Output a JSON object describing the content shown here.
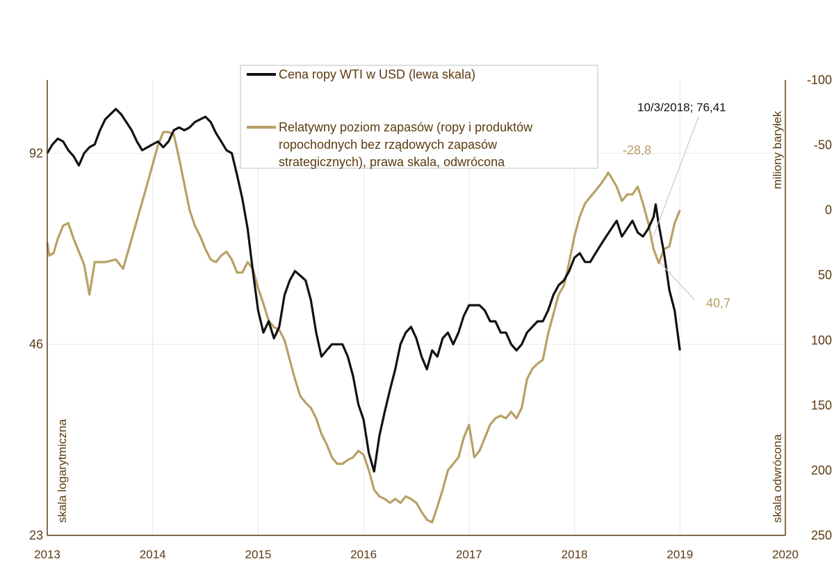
{
  "colors": {
    "axis": "#5c3a10",
    "wti": "#111111",
    "inventory": "#b8a065",
    "grid": "#e6e6e6",
    "callout": "#c8c8c8"
  },
  "chart_data": {
    "type": "line",
    "x_range": [
      2013,
      2020
    ],
    "x_ticks": [
      "2013",
      "2014",
      "2015",
      "2016",
      "2017",
      "2018",
      "2019",
      "2020"
    ],
    "left_axis": {
      "scale": "log",
      "range": [
        23,
        120
      ],
      "ticks": [
        {
          "value": 92,
          "label": "92"
        },
        {
          "value": 46,
          "label": "46"
        },
        {
          "value": 23,
          "label": "23"
        }
      ],
      "title": "skala logarytmiczna"
    },
    "right_axis": {
      "inverted": true,
      "range": [
        -100,
        250
      ],
      "ticks": [
        {
          "value": -100,
          "label": "-100"
        },
        {
          "value": -50,
          "label": "-50"
        },
        {
          "value": 0,
          "label": "0"
        },
        {
          "value": 50,
          "label": "50"
        },
        {
          "value": 100,
          "label": "100"
        },
        {
          "value": 150,
          "label": "150"
        },
        {
          "value": 200,
          "label": "200"
        },
        {
          "value": 250,
          "label": "250"
        }
      ],
      "title_top": "miliony baryłek",
      "title_bottom": "skala odwrócona"
    },
    "legend": {
      "wti": "Cena ropy WTI w USD (lewa skala)",
      "inventory_lines": [
        "Relatywny poziom zapasów (ropy i produktów",
        "ropochodnych bez rządowych zapasów",
        "strategicznych), prawa skala, odwrócona"
      ]
    },
    "annotations": {
      "wti_peak": "10/3/2018; 76,41",
      "inv_min": "-28,8",
      "inv_value": "40,7"
    },
    "series": [
      {
        "name": "Cena ropy WTI w USD (lewa skala)",
        "axis": "left",
        "points": [
          [
            2013.0,
            92
          ],
          [
            2013.05,
            95
          ],
          [
            2013.1,
            97
          ],
          [
            2013.15,
            96
          ],
          [
            2013.2,
            93
          ],
          [
            2013.25,
            91
          ],
          [
            2013.3,
            88
          ],
          [
            2013.35,
            92
          ],
          [
            2013.4,
            94
          ],
          [
            2013.45,
            95
          ],
          [
            2013.5,
            100
          ],
          [
            2013.55,
            104
          ],
          [
            2013.6,
            106
          ],
          [
            2013.65,
            108
          ],
          [
            2013.7,
            106
          ],
          [
            2013.75,
            103
          ],
          [
            2013.8,
            100
          ],
          [
            2013.85,
            96
          ],
          [
            2013.9,
            93
          ],
          [
            2013.95,
            94
          ],
          [
            2014.0,
            95
          ],
          [
            2014.05,
            96
          ],
          [
            2014.1,
            94
          ],
          [
            2014.15,
            96
          ],
          [
            2014.2,
            100
          ],
          [
            2014.25,
            101
          ],
          [
            2014.3,
            100
          ],
          [
            2014.35,
            101
          ],
          [
            2014.4,
            103
          ],
          [
            2014.45,
            104
          ],
          [
            2014.5,
            105
          ],
          [
            2014.55,
            103
          ],
          [
            2014.6,
            99
          ],
          [
            2014.65,
            96
          ],
          [
            2014.7,
            93
          ],
          [
            2014.75,
            92
          ],
          [
            2014.8,
            85
          ],
          [
            2014.85,
            78
          ],
          [
            2014.9,
            70
          ],
          [
            2014.95,
            60
          ],
          [
            2015.0,
            52
          ],
          [
            2015.05,
            48
          ],
          [
            2015.1,
            50
          ],
          [
            2015.15,
            47
          ],
          [
            2015.2,
            49
          ],
          [
            2015.25,
            55
          ],
          [
            2015.3,
            58
          ],
          [
            2015.35,
            60
          ],
          [
            2015.4,
            59
          ],
          [
            2015.45,
            58
          ],
          [
            2015.5,
            54
          ],
          [
            2015.55,
            48
          ],
          [
            2015.6,
            44
          ],
          [
            2015.65,
            45
          ],
          [
            2015.7,
            46
          ],
          [
            2015.75,
            46
          ],
          [
            2015.8,
            46
          ],
          [
            2015.85,
            44
          ],
          [
            2015.9,
            41
          ],
          [
            2015.95,
            37
          ],
          [
            2016.0,
            35
          ],
          [
            2016.05,
            31
          ],
          [
            2016.1,
            29
          ],
          [
            2016.15,
            33
          ],
          [
            2016.2,
            36
          ],
          [
            2016.25,
            39
          ],
          [
            2016.3,
            42
          ],
          [
            2016.35,
            46
          ],
          [
            2016.4,
            48
          ],
          [
            2016.45,
            49
          ],
          [
            2016.5,
            47
          ],
          [
            2016.55,
            44
          ],
          [
            2016.6,
            42
          ],
          [
            2016.65,
            45
          ],
          [
            2016.7,
            44
          ],
          [
            2016.75,
            47
          ],
          [
            2016.8,
            48
          ],
          [
            2016.85,
            46
          ],
          [
            2016.9,
            48
          ],
          [
            2016.95,
            51
          ],
          [
            2017.0,
            53
          ],
          [
            2017.05,
            53
          ],
          [
            2017.1,
            53
          ],
          [
            2017.15,
            52
          ],
          [
            2017.2,
            50
          ],
          [
            2017.25,
            50
          ],
          [
            2017.3,
            48
          ],
          [
            2017.35,
            48
          ],
          [
            2017.4,
            46
          ],
          [
            2017.45,
            45
          ],
          [
            2017.5,
            46
          ],
          [
            2017.55,
            48
          ],
          [
            2017.6,
            49
          ],
          [
            2017.65,
            50
          ],
          [
            2017.7,
            50
          ],
          [
            2017.75,
            52
          ],
          [
            2017.8,
            55
          ],
          [
            2017.85,
            57
          ],
          [
            2017.9,
            58
          ],
          [
            2017.95,
            60
          ],
          [
            2018.0,
            63
          ],
          [
            2018.05,
            64
          ],
          [
            2018.1,
            62
          ],
          [
            2018.15,
            62
          ],
          [
            2018.2,
            64
          ],
          [
            2018.25,
            66
          ],
          [
            2018.3,
            68
          ],
          [
            2018.35,
            70
          ],
          [
            2018.4,
            72
          ],
          [
            2018.45,
            68
          ],
          [
            2018.5,
            70
          ],
          [
            2018.55,
            72
          ],
          [
            2018.6,
            69
          ],
          [
            2018.65,
            68
          ],
          [
            2018.7,
            70
          ],
          [
            2018.75,
            73
          ],
          [
            2018.77,
            76.41
          ],
          [
            2018.8,
            71
          ],
          [
            2018.85,
            64
          ],
          [
            2018.9,
            56
          ],
          [
            2018.95,
            52
          ],
          [
            2019.0,
            45
          ]
        ]
      },
      {
        "name": "Relatywny poziom zapasów (prawa skala, odwrócona)",
        "axis": "right",
        "points": [
          [
            2013.0,
            25
          ],
          [
            2013.02,
            35
          ],
          [
            2013.06,
            33
          ],
          [
            2013.1,
            22
          ],
          [
            2013.15,
            12
          ],
          [
            2013.2,
            10
          ],
          [
            2013.25,
            22
          ],
          [
            2013.3,
            32
          ],
          [
            2013.35,
            42
          ],
          [
            2013.4,
            65
          ],
          [
            2013.45,
            40
          ],
          [
            2013.55,
            40
          ],
          [
            2013.65,
            38
          ],
          [
            2013.72,
            45
          ],
          [
            2013.78,
            28
          ],
          [
            2013.85,
            8
          ],
          [
            2013.92,
            -12
          ],
          [
            2014.0,
            -35
          ],
          [
            2014.05,
            -50
          ],
          [
            2014.1,
            -60
          ],
          [
            2014.15,
            -60
          ],
          [
            2014.2,
            -58
          ],
          [
            2014.25,
            -40
          ],
          [
            2014.3,
            -20
          ],
          [
            2014.35,
            0
          ],
          [
            2014.4,
            12
          ],
          [
            2014.45,
            20
          ],
          [
            2014.5,
            30
          ],
          [
            2014.55,
            38
          ],
          [
            2014.6,
            40
          ],
          [
            2014.65,
            35
          ],
          [
            2014.7,
            32
          ],
          [
            2014.75,
            38
          ],
          [
            2014.8,
            48
          ],
          [
            2014.85,
            48
          ],
          [
            2014.9,
            40
          ],
          [
            2014.95,
            45
          ],
          [
            2015.0,
            60
          ],
          [
            2015.05,
            72
          ],
          [
            2015.1,
            85
          ],
          [
            2015.15,
            90
          ],
          [
            2015.2,
            92
          ],
          [
            2015.25,
            100
          ],
          [
            2015.3,
            115
          ],
          [
            2015.35,
            130
          ],
          [
            2015.4,
            143
          ],
          [
            2015.45,
            148
          ],
          [
            2015.5,
            152
          ],
          [
            2015.55,
            160
          ],
          [
            2015.6,
            172
          ],
          [
            2015.65,
            180
          ],
          [
            2015.7,
            190
          ],
          [
            2015.75,
            195
          ],
          [
            2015.8,
            195
          ],
          [
            2015.85,
            192
          ],
          [
            2015.9,
            190
          ],
          [
            2015.95,
            185
          ],
          [
            2016.0,
            188
          ],
          [
            2016.05,
            200
          ],
          [
            2016.1,
            215
          ],
          [
            2016.15,
            220
          ],
          [
            2016.2,
            222
          ],
          [
            2016.25,
            225
          ],
          [
            2016.3,
            222
          ],
          [
            2016.35,
            225
          ],
          [
            2016.4,
            220
          ],
          [
            2016.45,
            222
          ],
          [
            2016.5,
            225
          ],
          [
            2016.55,
            232
          ],
          [
            2016.6,
            238
          ],
          [
            2016.65,
            240
          ],
          [
            2016.7,
            228
          ],
          [
            2016.75,
            215
          ],
          [
            2016.8,
            200
          ],
          [
            2016.85,
            195
          ],
          [
            2016.9,
            190
          ],
          [
            2016.95,
            175
          ],
          [
            2017.0,
            165
          ],
          [
            2017.05,
            190
          ],
          [
            2017.1,
            185
          ],
          [
            2017.15,
            175
          ],
          [
            2017.2,
            165
          ],
          [
            2017.25,
            160
          ],
          [
            2017.3,
            158
          ],
          [
            2017.35,
            160
          ],
          [
            2017.4,
            155
          ],
          [
            2017.45,
            160
          ],
          [
            2017.5,
            152
          ],
          [
            2017.55,
            130
          ],
          [
            2017.6,
            122
          ],
          [
            2017.65,
            118
          ],
          [
            2017.7,
            115
          ],
          [
            2017.75,
            95
          ],
          [
            2017.8,
            80
          ],
          [
            2017.85,
            65
          ],
          [
            2017.9,
            58
          ],
          [
            2017.95,
            40
          ],
          [
            2018.0,
            20
          ],
          [
            2018.05,
            5
          ],
          [
            2018.1,
            -5
          ],
          [
            2018.15,
            -10
          ],
          [
            2018.2,
            -15
          ],
          [
            2018.25,
            -20
          ],
          [
            2018.3,
            -26
          ],
          [
            2018.32,
            -28.8
          ],
          [
            2018.35,
            -25
          ],
          [
            2018.4,
            -18
          ],
          [
            2018.45,
            -7
          ],
          [
            2018.5,
            -12
          ],
          [
            2018.55,
            -12
          ],
          [
            2018.6,
            -18
          ],
          [
            2018.65,
            -5
          ],
          [
            2018.7,
            10
          ],
          [
            2018.75,
            30
          ],
          [
            2018.8,
            40.7
          ],
          [
            2018.85,
            30
          ],
          [
            2018.9,
            28
          ],
          [
            2018.95,
            10
          ],
          [
            2019.0,
            0
          ]
        ]
      }
    ]
  }
}
